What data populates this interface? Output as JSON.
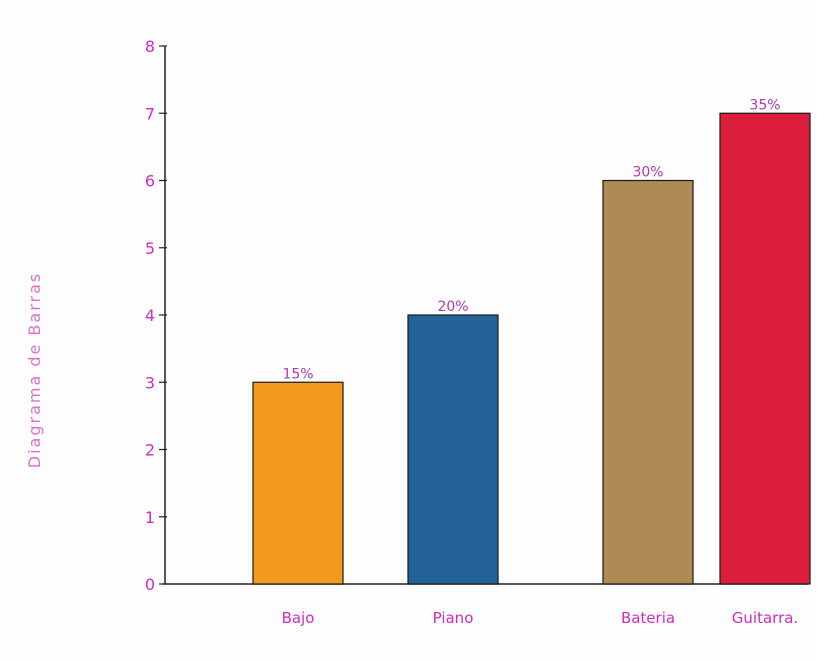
{
  "chart_data": {
    "type": "bar",
    "title": "",
    "xlabel": "",
    "ylabel": "Diagrama de Barras",
    "ylim": [
      0,
      8
    ],
    "yticks": [
      "0",
      "1",
      "2",
      "3",
      "4",
      "5",
      "6",
      "7",
      "8"
    ],
    "categories": [
      "Bajo",
      "Piano",
      "Bateria",
      "Guitarra."
    ],
    "values": [
      3,
      4,
      6,
      7
    ],
    "data_labels": [
      "15%",
      "20%",
      "30%",
      "35%"
    ],
    "colors": [
      "#f39a1c",
      "#23639a",
      "#b08a55",
      "#dc1e3c"
    ],
    "grid": false,
    "legend": "none"
  }
}
